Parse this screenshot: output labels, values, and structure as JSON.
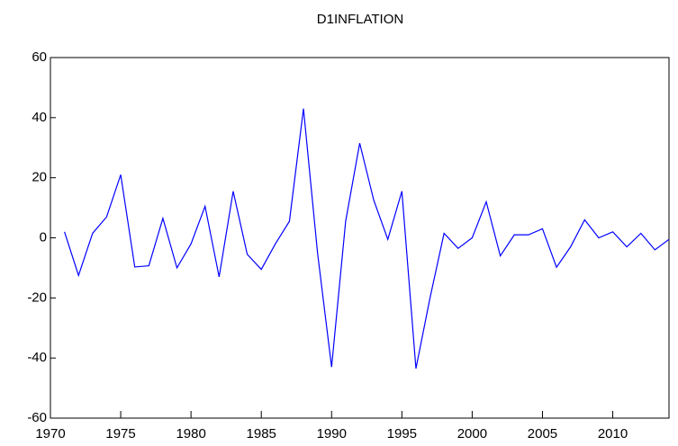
{
  "chart_data": {
    "type": "line",
    "title": "D1INFLATION",
    "x": [
      1971,
      1972,
      1973,
      1974,
      1975,
      1976,
      1977,
      1978,
      1979,
      1980,
      1981,
      1982,
      1983,
      1984,
      1985,
      1986,
      1987,
      1988,
      1989,
      1990,
      1991,
      1992,
      1993,
      1994,
      1995,
      1996,
      1997,
      1998,
      1999,
      2000,
      2001,
      2002,
      2003,
      2004,
      2005,
      2006,
      2007,
      2008,
      2009,
      2010,
      2011,
      2012,
      2013,
      2014
    ],
    "series": [
      {
        "color": "#0000ff",
        "values": [
          2,
          -12.5,
          1.5,
          7,
          21,
          -9.7,
          -9.3,
          6.5,
          -10,
          -2,
          10.5,
          -13,
          15.5,
          -5.5,
          -10.5,
          -2,
          5.5,
          43,
          -5,
          -43,
          5.5,
          31.5,
          12.5,
          -0.5,
          15.5,
          -43.5,
          -20,
          1.5,
          -3.5,
          0,
          12,
          -6,
          1,
          1,
          3,
          -9.8,
          -3,
          6,
          0,
          2,
          -3,
          1.5,
          -4,
          -0.5
        ]
      }
    ],
    "xlim": [
      1970,
      2014
    ],
    "xticks": [
      1970,
      1975,
      1980,
      1985,
      1990,
      1995,
      2000,
      2005,
      2010
    ],
    "ylim": [
      -60,
      60
    ],
    "yticks": [
      -60,
      -40,
      -20,
      0,
      20,
      40,
      60
    ]
  }
}
